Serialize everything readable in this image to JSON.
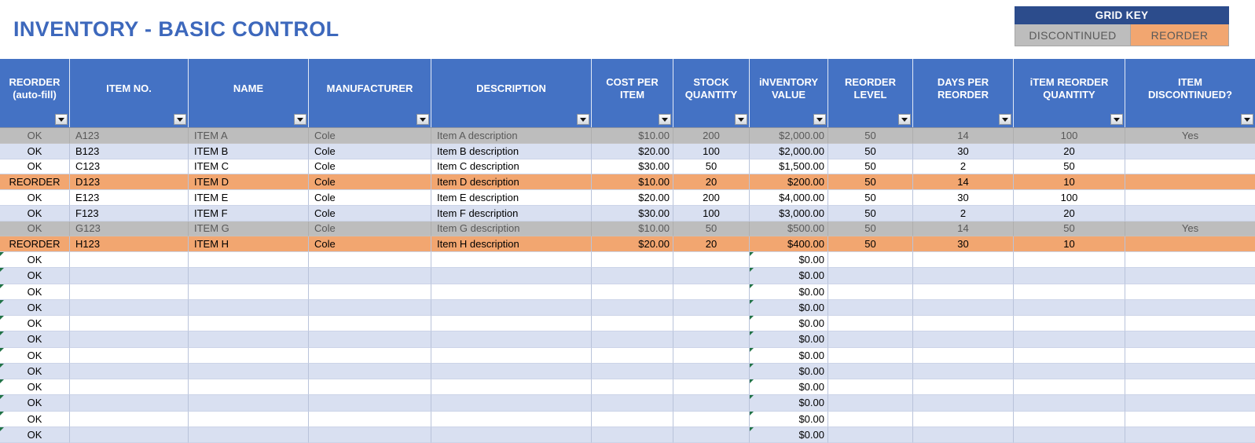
{
  "title": "INVENTORY - BASIC CONTROL",
  "grid_key": {
    "title": "GRID KEY",
    "items": [
      {
        "label": "DISCONTINUED",
        "style": "discontinued"
      },
      {
        "label": "REORDER",
        "style": "reorder"
      }
    ]
  },
  "columns": [
    {
      "id": "status",
      "label": "REORDER\n(auto-fill)"
    },
    {
      "id": "item_no",
      "label": "ITEM NO."
    },
    {
      "id": "name",
      "label": "NAME"
    },
    {
      "id": "manufacturer",
      "label": "MANUFACTURER"
    },
    {
      "id": "description",
      "label": "DESCRIPTION"
    },
    {
      "id": "cost_per_item",
      "label": "COST PER\nITEM"
    },
    {
      "id": "stock_quantity",
      "label": "STOCK\nQUANTITY"
    },
    {
      "id": "inventory_value",
      "label": "iNVENTORY\nVALUE"
    },
    {
      "id": "reorder_level",
      "label": "REORDER\nLEVEL"
    },
    {
      "id": "days_per_reorder",
      "label": "DAYS PER\nREORDER"
    },
    {
      "id": "item_reorder_quantity",
      "label": "iTEM REORDER\nQUANTITY"
    },
    {
      "id": "item_discontinued",
      "label": "ITEM\nDISCONTINUED?"
    }
  ],
  "rows": [
    {
      "status": "OK",
      "item_no": "A123",
      "name": "ITEM A",
      "manufacturer": "Cole",
      "description": "Item A description",
      "cost_per_item": "$10.00",
      "stock_quantity": "200",
      "inventory_value": "$2,000.00",
      "reorder_level": "50",
      "days_per_reorder": "14",
      "item_reorder_quantity": "100",
      "item_discontinued": "Yes",
      "style": "discontinued"
    },
    {
      "status": "OK",
      "item_no": "B123",
      "name": "ITEM B",
      "manufacturer": "Cole",
      "description": "Item B description",
      "cost_per_item": "$20.00",
      "stock_quantity": "100",
      "inventory_value": "$2,000.00",
      "reorder_level": "50",
      "days_per_reorder": "30",
      "item_reorder_quantity": "20",
      "item_discontinued": "",
      "style": "banded"
    },
    {
      "status": "OK",
      "item_no": "C123",
      "name": "ITEM C",
      "manufacturer": "Cole",
      "description": "Item C description",
      "cost_per_item": "$30.00",
      "stock_quantity": "50",
      "inventory_value": "$1,500.00",
      "reorder_level": "50",
      "days_per_reorder": "2",
      "item_reorder_quantity": "50",
      "item_discontinued": "",
      "style": "plain"
    },
    {
      "status": "REORDER",
      "item_no": "D123",
      "name": "ITEM D",
      "manufacturer": "Cole",
      "description": "Item D description",
      "cost_per_item": "$10.00",
      "stock_quantity": "20",
      "inventory_value": "$200.00",
      "reorder_level": "50",
      "days_per_reorder": "14",
      "item_reorder_quantity": "10",
      "item_discontinued": "",
      "style": "reorder"
    },
    {
      "status": "OK",
      "item_no": "E123",
      "name": "ITEM E",
      "manufacturer": "Cole",
      "description": "Item E description",
      "cost_per_item": "$20.00",
      "stock_quantity": "200",
      "inventory_value": "$4,000.00",
      "reorder_level": "50",
      "days_per_reorder": "30",
      "item_reorder_quantity": "100",
      "item_discontinued": "",
      "style": "plain"
    },
    {
      "status": "OK",
      "item_no": "F123",
      "name": "ITEM F",
      "manufacturer": "Cole",
      "description": "Item F description",
      "cost_per_item": "$30.00",
      "stock_quantity": "100",
      "inventory_value": "$3,000.00",
      "reorder_level": "50",
      "days_per_reorder": "2",
      "item_reorder_quantity": "20",
      "item_discontinued": "",
      "style": "banded"
    },
    {
      "status": "OK",
      "item_no": "G123",
      "name": "ITEM G",
      "manufacturer": "Cole",
      "description": "Item G description",
      "cost_per_item": "$10.00",
      "stock_quantity": "50",
      "inventory_value": "$500.00",
      "reorder_level": "50",
      "days_per_reorder": "14",
      "item_reorder_quantity": "50",
      "item_discontinued": "Yes",
      "style": "discontinued"
    },
    {
      "status": "REORDER",
      "item_no": "H123",
      "name": "ITEM H",
      "manufacturer": "Cole",
      "description": "Item H description",
      "cost_per_item": "$20.00",
      "stock_quantity": "20",
      "inventory_value": "$400.00",
      "reorder_level": "50",
      "days_per_reorder": "30",
      "item_reorder_quantity": "10",
      "item_discontinued": "",
      "style": "reorder"
    }
  ],
  "empty_rows": {
    "count": 12,
    "status": "OK",
    "inventory_value": "$0.00"
  },
  "colors": {
    "header_blue": "#4472C4",
    "key_header_navy": "#2C4C8C",
    "discontinued_bg": "#BDBDBD",
    "discontinued_text": "#595959",
    "reorder_bg": "#F2A670",
    "banded_bg": "#D9E0F1",
    "title_blue": "#3D68BC",
    "warning_green": "#217346"
  }
}
